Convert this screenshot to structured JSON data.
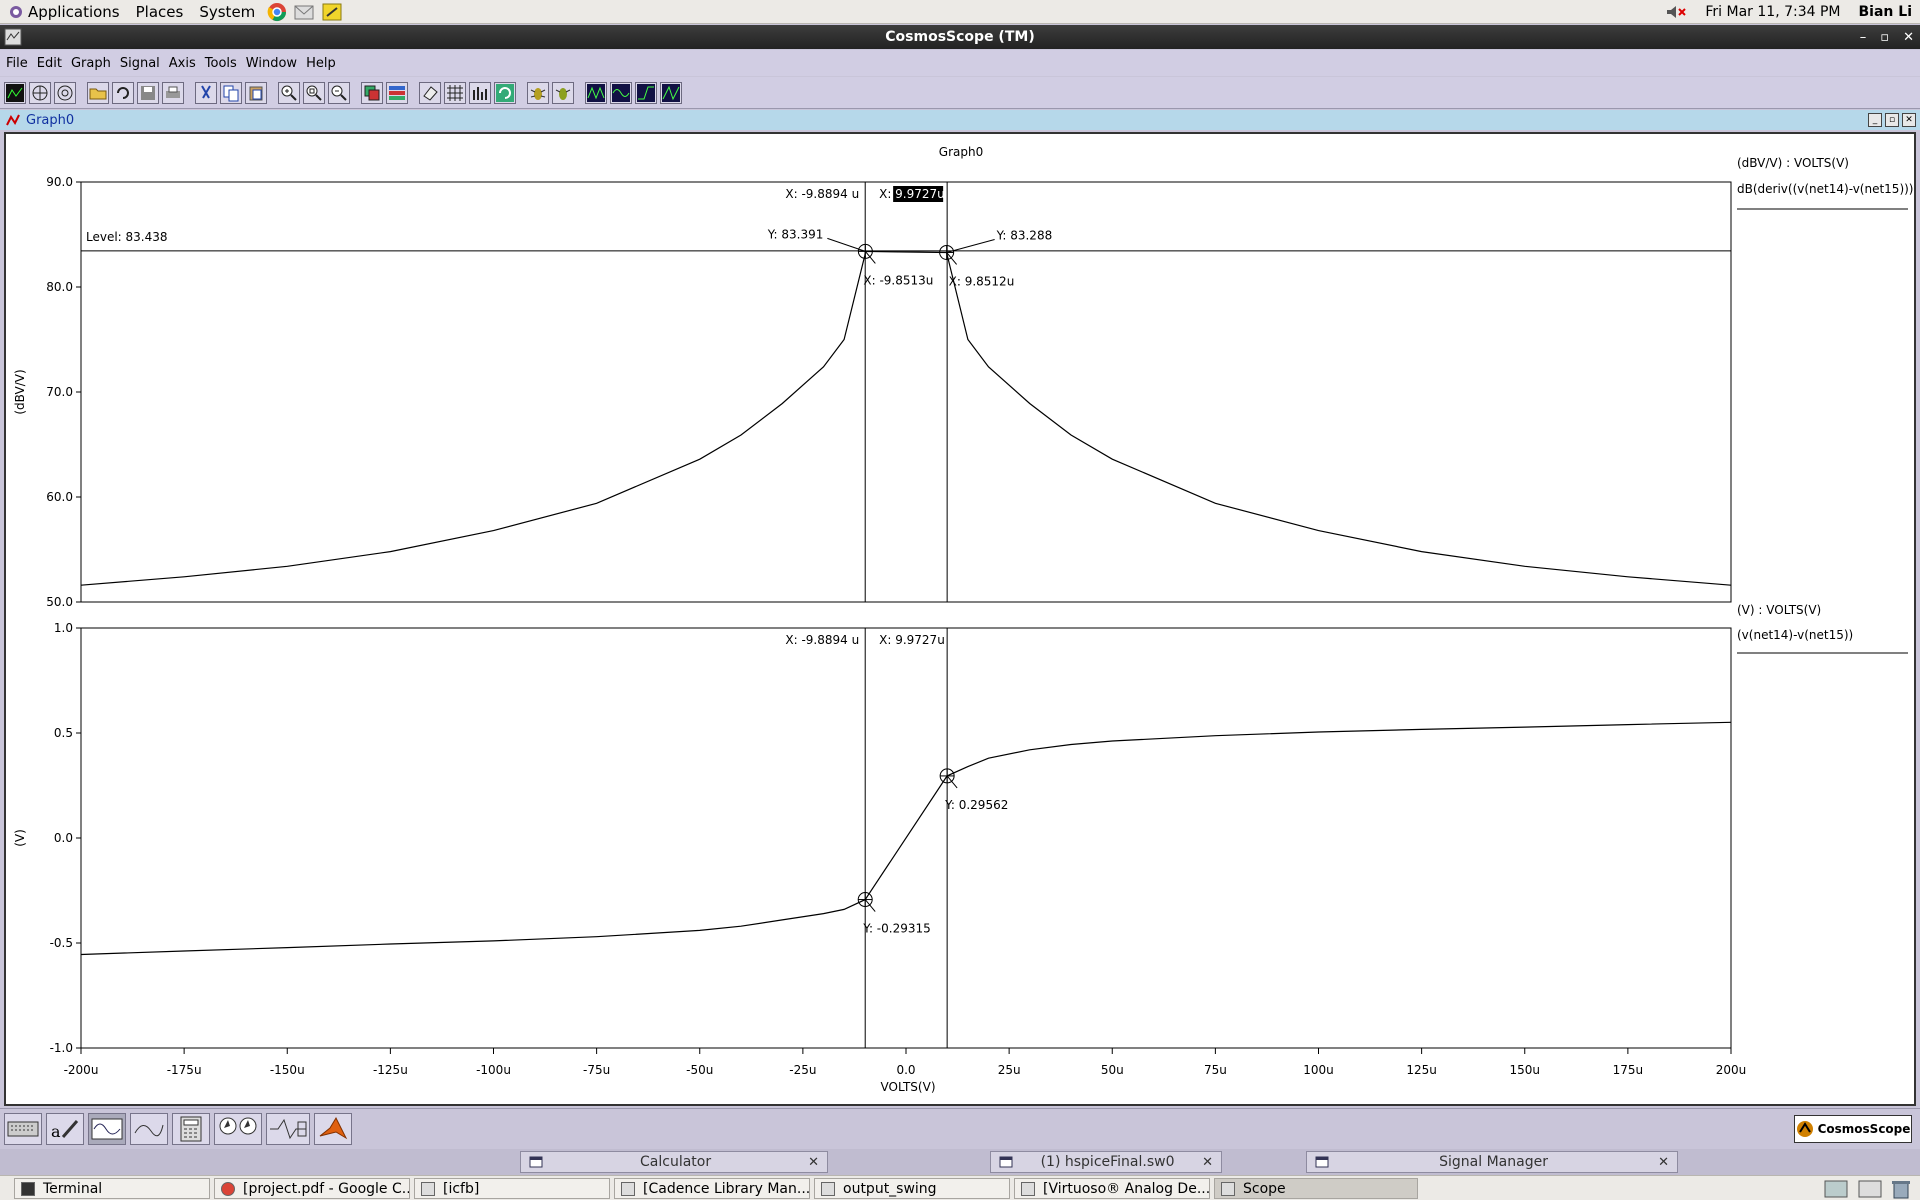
{
  "topbar": {
    "menus": [
      "Applications",
      "Places",
      "System"
    ],
    "datetime": "Fri Mar 11,  7:34 PM",
    "user": "Bian Li"
  },
  "window": {
    "title": "CosmosScope (TM)"
  },
  "menubar": [
    "File",
    "Edit",
    "Graph",
    "Signal",
    "Axis",
    "Tools",
    "Window",
    "Help"
  ],
  "graph_tab": {
    "label": "Graph0"
  },
  "chart_data": [
    {
      "type": "line",
      "title": "Graph0",
      "ylabel": "(dBV/V)",
      "xlabel": "",
      "ylim": [
        50,
        90
      ],
      "yticks": [
        "90.0",
        "80.0",
        "70.0",
        "60.0",
        "50.0"
      ],
      "legend_header": "(dBV/V) : VOLTS(V)",
      "series": [
        {
          "name": "dB(deriv((v(net14)-v(net15))))",
          "x": [
            -200,
            -175,
            -150,
            -125,
            -100,
            -75,
            -50,
            -40,
            -30,
            -20,
            -15,
            -10,
            -9.8513,
            9.8512,
            10,
            15,
            20,
            30,
            40,
            50,
            75,
            100,
            125,
            150,
            175,
            200
          ],
          "y": [
            51.6,
            52.4,
            53.4,
            54.8,
            56.8,
            59.4,
            63.6,
            65.9,
            68.9,
            72.4,
            75.0,
            83.0,
            83.391,
            83.288,
            83.0,
            75.0,
            72.4,
            68.9,
            65.9,
            63.6,
            59.4,
            56.8,
            54.8,
            53.4,
            52.4,
            51.6
          ]
        }
      ],
      "level": {
        "label": "Level: 83.438",
        "value": 83.438
      },
      "cursors": [
        {
          "x_label": "X: -9.8894 u",
          "x": -9.8894
        },
        {
          "x_label": "X: 9.9727u",
          "x": 9.9727
        }
      ],
      "markers": [
        {
          "x": -9.8513,
          "y": 83.391,
          "y_label": "Y: 83.391",
          "x_label": "X: -9.8513u"
        },
        {
          "x": 9.8512,
          "y": 83.288,
          "y_label": "Y: 83.288",
          "x_label": "X: 9.8512u"
        }
      ]
    },
    {
      "type": "line",
      "ylabel": "(V)",
      "xlabel": "VOLTS(V)",
      "ylim": [
        -1,
        1
      ],
      "yticks": [
        "1.0",
        "0.5",
        "0.0",
        "-0.5",
        "-1.0"
      ],
      "xlim": [
        -200,
        200
      ],
      "xticks": [
        "-200u",
        "-175u",
        "-150u",
        "-125u",
        "-100u",
        "-75u",
        "-50u",
        "-25u",
        "0.0",
        "25u",
        "50u",
        "75u",
        "100u",
        "125u",
        "150u",
        "175u",
        "200u"
      ],
      "legend_header": "(V) : VOLTS(V)",
      "series": [
        {
          "name": "(v(net14)-v(net15))",
          "x": [
            -200,
            -175,
            -150,
            -125,
            -100,
            -75,
            -50,
            -40,
            -30,
            -20,
            -15,
            -9.8894,
            9.9727,
            15,
            20,
            30,
            40,
            50,
            75,
            100,
            125,
            150,
            175,
            200
          ],
          "y": [
            -0.555,
            -0.538,
            -0.522,
            -0.505,
            -0.49,
            -0.47,
            -0.44,
            -0.42,
            -0.39,
            -0.36,
            -0.34,
            -0.29315,
            0.29562,
            0.34,
            0.38,
            0.42,
            0.445,
            0.462,
            0.487,
            0.505,
            0.517,
            0.528,
            0.54,
            0.551
          ]
        }
      ],
      "cursors": [
        {
          "x_label": "X: -9.8894 u",
          "x": -9.8894
        },
        {
          "x_label": "X: 9.9727u",
          "x": 9.9727
        }
      ],
      "markers": [
        {
          "x": -9.8894,
          "y": -0.29315,
          "y_label": "Y: -0.29315"
        },
        {
          "x": 9.9727,
          "y": 0.29562,
          "y_label": "Y: 0.29562"
        }
      ]
    }
  ],
  "bottom": {
    "logo": "CosmosScope"
  },
  "docks": [
    {
      "label": "Calculator"
    },
    {
      "label": "(1) hspiceFinal.sw0"
    },
    {
      "label": "Signal Manager"
    }
  ],
  "taskbar": [
    {
      "label": "Terminal"
    },
    {
      "label": "[project.pdf - Google C..."
    },
    {
      "label": "[icfb]"
    },
    {
      "label": "[Cadence Library Man..."
    },
    {
      "label": "output_swing"
    },
    {
      "label": "[Virtuoso® Analog De..."
    },
    {
      "label": "Scope"
    }
  ],
  "colors": {
    "accent": "#1030a0",
    "toolbar": "#d1cde3",
    "graph_header": "#b6d8ea"
  }
}
